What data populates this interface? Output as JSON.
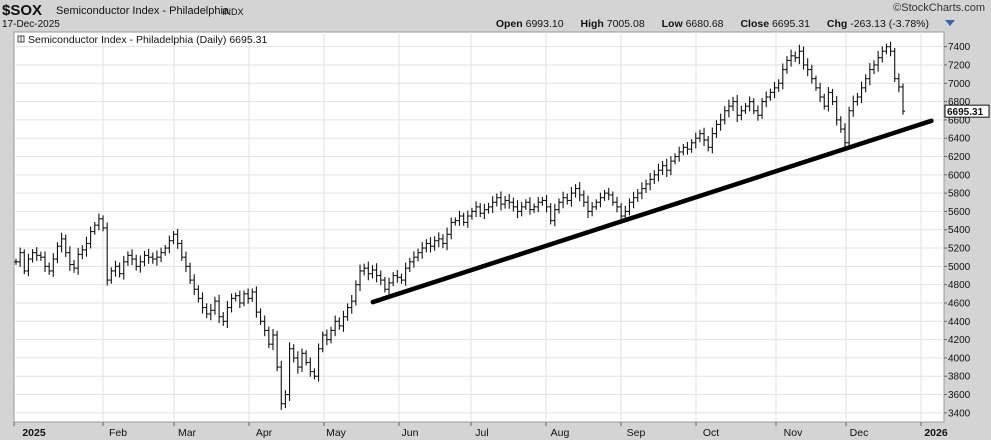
{
  "header": {
    "symbol": "$SOX",
    "name": "Semiconductor Index - Philadelphia",
    "exchange": "INDX",
    "date": "17-Dec-2025",
    "brand": "©StockCharts.com",
    "open_label": "Open",
    "open": "6993.10",
    "high_label": "High",
    "high": "7005.08",
    "low_label": "Low",
    "low": "6680.68",
    "close_label": "Close",
    "close": "6695.31",
    "chg_label": "Chg",
    "chg": "-263.13 (-3.78%)"
  },
  "chart_data": {
    "type": "ohlc",
    "legend_text": "Semiconductor Index - Philadelphia (Daily) 6695.31",
    "last_price_label": "6695.31",
    "ylim": [
      3300,
      7560
    ],
    "y_ticks": [
      3400,
      3600,
      3800,
      4000,
      4200,
      4400,
      4600,
      4800,
      5000,
      5200,
      5400,
      5600,
      5800,
      6000,
      6200,
      6400,
      6600,
      6800,
      7000,
      7200,
      7400
    ],
    "x_labels": [
      "2025",
      "Feb",
      "Mar",
      "Apr",
      "May",
      "Jun",
      "Jul",
      "Aug",
      "Sep",
      "Oct",
      "Nov",
      "Dec",
      "2026"
    ],
    "grid": true,
    "trendline": {
      "start": {
        "date": "2025-05-23",
        "value": 4610
      },
      "end": {
        "date": "2025-12-31",
        "value": 6590
      }
    },
    "series": [
      {
        "values": [
          5050,
          5150,
          4950,
          5080,
          5150,
          5120,
          5100,
          5000,
          4950,
          5080,
          5220,
          5300,
          5150,
          5020,
          4980,
          5130,
          5180,
          5250,
          5380,
          5450,
          5520,
          5420,
          4850,
          4950,
          5000,
          4920,
          5050,
          5120,
          5080,
          5000,
          5050,
          5120,
          5100,
          5080,
          5100,
          5150,
          5200,
          5280,
          5350,
          5250,
          5100,
          5000,
          4850,
          4750,
          4650,
          4550,
          4480,
          4520,
          4620,
          4450,
          4400,
          4550,
          4650,
          4680,
          4600,
          4700,
          4650,
          4720,
          4500,
          4400,
          4300,
          4150,
          4250,
          3900,
          3500,
          3600,
          4100,
          4000,
          3900,
          4050,
          3950,
          3850,
          3800,
          4100,
          4250,
          4200,
          4300,
          4400,
          4350,
          4450,
          4550,
          4620,
          4800,
          4950,
          4980,
          4920,
          4960,
          4900,
          4850,
          4750,
          4820,
          4900,
          4880,
          4850,
          4980,
          5050,
          5100,
          5150,
          5200,
          5250,
          5220,
          5280,
          5300,
          5250,
          5350,
          5480,
          5500,
          5550,
          5480,
          5550,
          5600,
          5650,
          5580,
          5620,
          5650,
          5700,
          5750,
          5680,
          5720,
          5700,
          5650,
          5600,
          5650,
          5700,
          5620,
          5650,
          5700,
          5720,
          5650,
          5500,
          5620,
          5700,
          5750,
          5720,
          5800,
          5850,
          5780,
          5700,
          5600,
          5650,
          5700,
          5750,
          5800,
          5780,
          5700,
          5650,
          5550,
          5600,
          5700,
          5750,
          5800,
          5850,
          5900,
          5950,
          6000,
          6050,
          6100,
          6050,
          6150,
          6200,
          6250,
          6300,
          6280,
          6350,
          6400,
          6450,
          6380,
          6300,
          6450,
          6550,
          6600,
          6700,
          6750,
          6800,
          6650,
          6700,
          6750,
          6800,
          6700,
          6650,
          6800,
          6850,
          6900,
          6950,
          7000,
          7150,
          7250,
          7300,
          7280,
          7350,
          7200,
          7150,
          7050,
          6950,
          6850,
          6750,
          6900,
          6800,
          6600,
          6500,
          6350,
          6700,
          6800,
          6850,
          6950,
          7050,
          7150,
          7200,
          7280,
          7350,
          7400,
          7350,
          7050,
          6960,
          6695
        ]
      }
    ]
  }
}
